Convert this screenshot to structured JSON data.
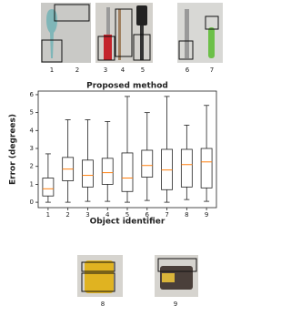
{
  "images": {
    "top_labels": [
      "1",
      "2",
      "3",
      "4",
      "5",
      "6",
      "7"
    ],
    "bottom_labels": [
      "8",
      "9"
    ]
  },
  "chart_data": {
    "type": "boxplot",
    "title": "Proposed method",
    "xlabel": "Object identifier",
    "ylabel": "Error (degrees)",
    "categories": [
      "1",
      "2",
      "3",
      "4",
      "5",
      "6",
      "7",
      "8",
      "9"
    ],
    "min": [
      0,
      0,
      0.05,
      0.05,
      0,
      0.1,
      0,
      0.15,
      0.05
    ],
    "q1": [
      0.35,
      1.2,
      0.85,
      1.0,
      0.6,
      1.4,
      0.7,
      0.85,
      0.8
    ],
    "median": [
      0.75,
      1.85,
      1.5,
      1.65,
      1.35,
      2.05,
      1.8,
      2.1,
      2.25
    ],
    "q3": [
      1.35,
      2.5,
      2.35,
      2.45,
      2.75,
      2.9,
      2.95,
      2.95,
      3.0
    ],
    "max": [
      2.7,
      4.6,
      4.6,
      4.5,
      5.9,
      5.0,
      5.9,
      4.3,
      5.4
    ],
    "box_color": "#222222",
    "median_color": "#ff7f0e",
    "ylim": [
      -0.3,
      6.2
    ],
    "yticks": [
      0,
      1,
      2,
      3,
      4,
      5,
      6
    ]
  }
}
